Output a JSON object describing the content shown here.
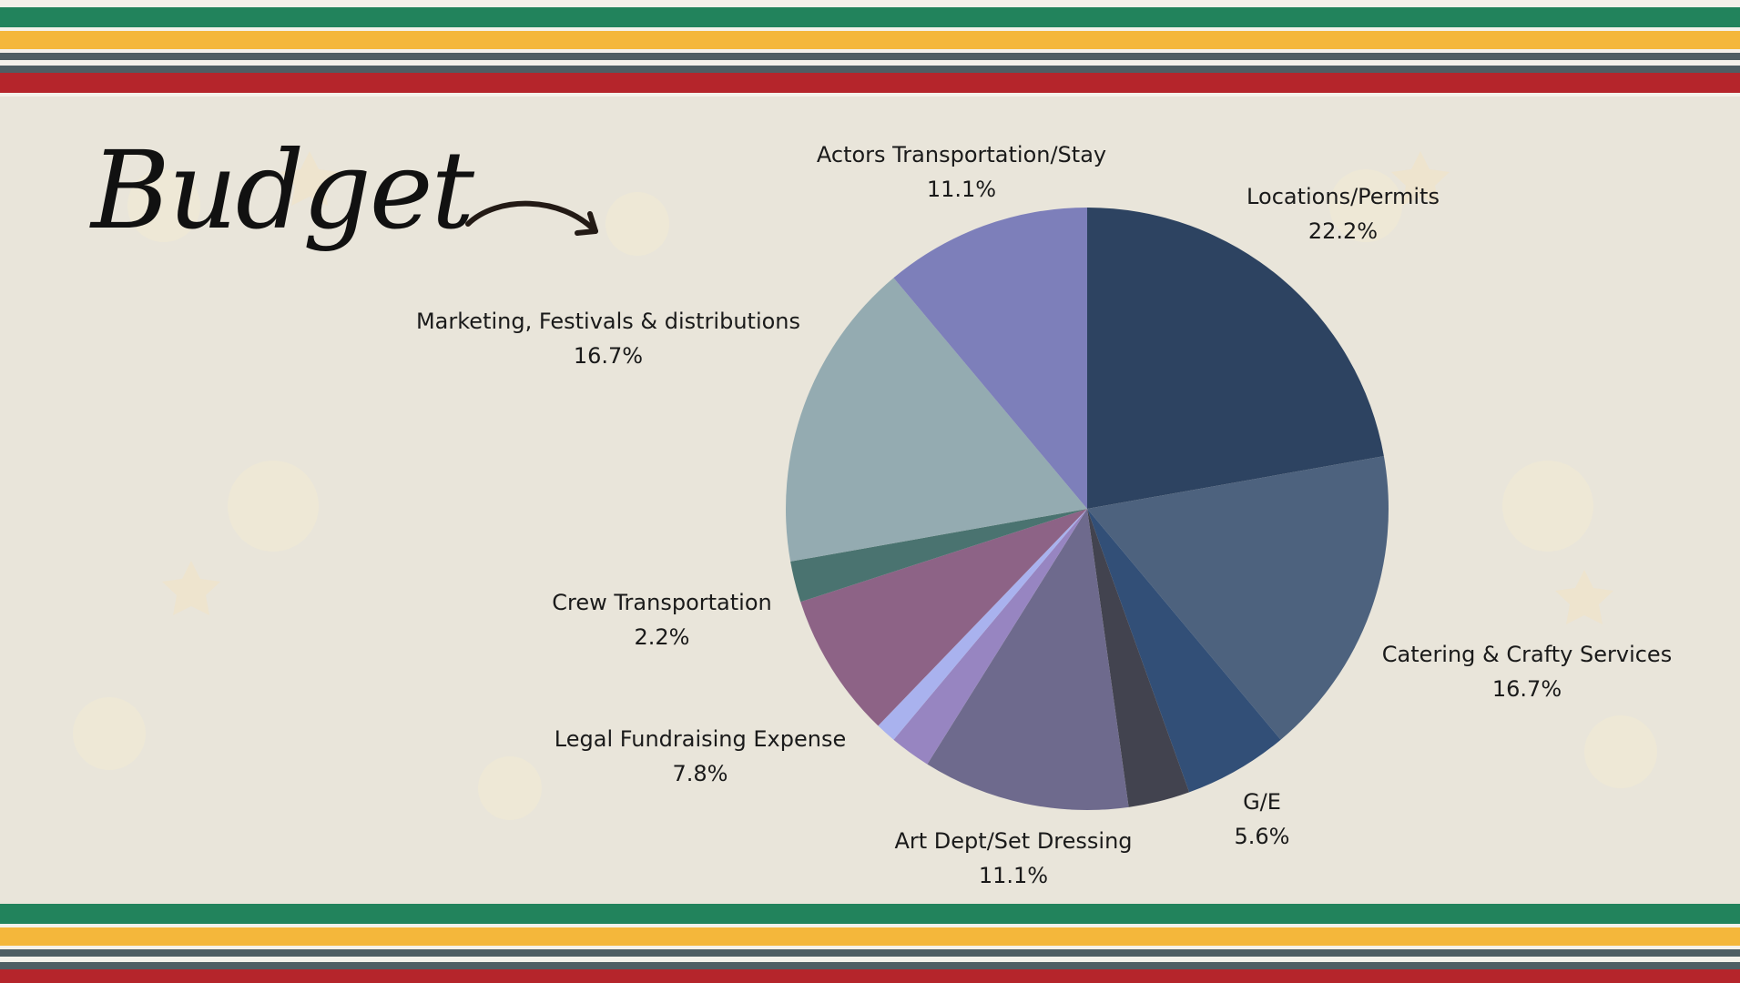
{
  "slide": {
    "title": "Budget"
  },
  "colors": {
    "background": "#e9e5da",
    "stripe_green": "#22835c",
    "stripe_yellow": "#f4b73b",
    "stripe_slate": "#4f5e63",
    "stripe_red": "#b5252b",
    "stripe_white": "#f4f1ea"
  },
  "chart_data": {
    "type": "pie",
    "title": "",
    "slices": [
      {
        "label": "Locations/Permits",
        "value": 22.2,
        "display": "22.2%",
        "color": "#2d4361"
      },
      {
        "label": "Catering & Crafty Services",
        "value": 16.7,
        "display": "16.7%",
        "color": "#4d627e"
      },
      {
        "label": "G/E",
        "value": 5.6,
        "display": "5.6%",
        "color": "#324f77"
      },
      {
        "label": "",
        "value": 3.3,
        "display": "",
        "color": "#42434f"
      },
      {
        "label": "Art Dept/Set Dressing",
        "value": 11.1,
        "display": "11.1%",
        "color": "#6e6a8d"
      },
      {
        "label": "",
        "value": 2.2,
        "display": "",
        "color": "#9785c1"
      },
      {
        "label": "",
        "value": 1.1,
        "display": "",
        "color": "#a9b2ee"
      },
      {
        "label": "Legal Fundraising Expense",
        "value": 7.8,
        "display": "7.8%",
        "color": "#8d6386"
      },
      {
        "label": "Crew Transportation",
        "value": 2.2,
        "display": "2.2%",
        "color": "#4a7370"
      },
      {
        "label": "Marketing, Festivals & distributions",
        "value": 16.7,
        "display": "16.7%",
        "color": "#94abb1"
      },
      {
        "label": "Actors Transportation/Stay",
        "value": 11.1,
        "display": "11.1%",
        "color": "#7d7fba"
      }
    ],
    "legend": "none",
    "data_labels": "outside"
  }
}
